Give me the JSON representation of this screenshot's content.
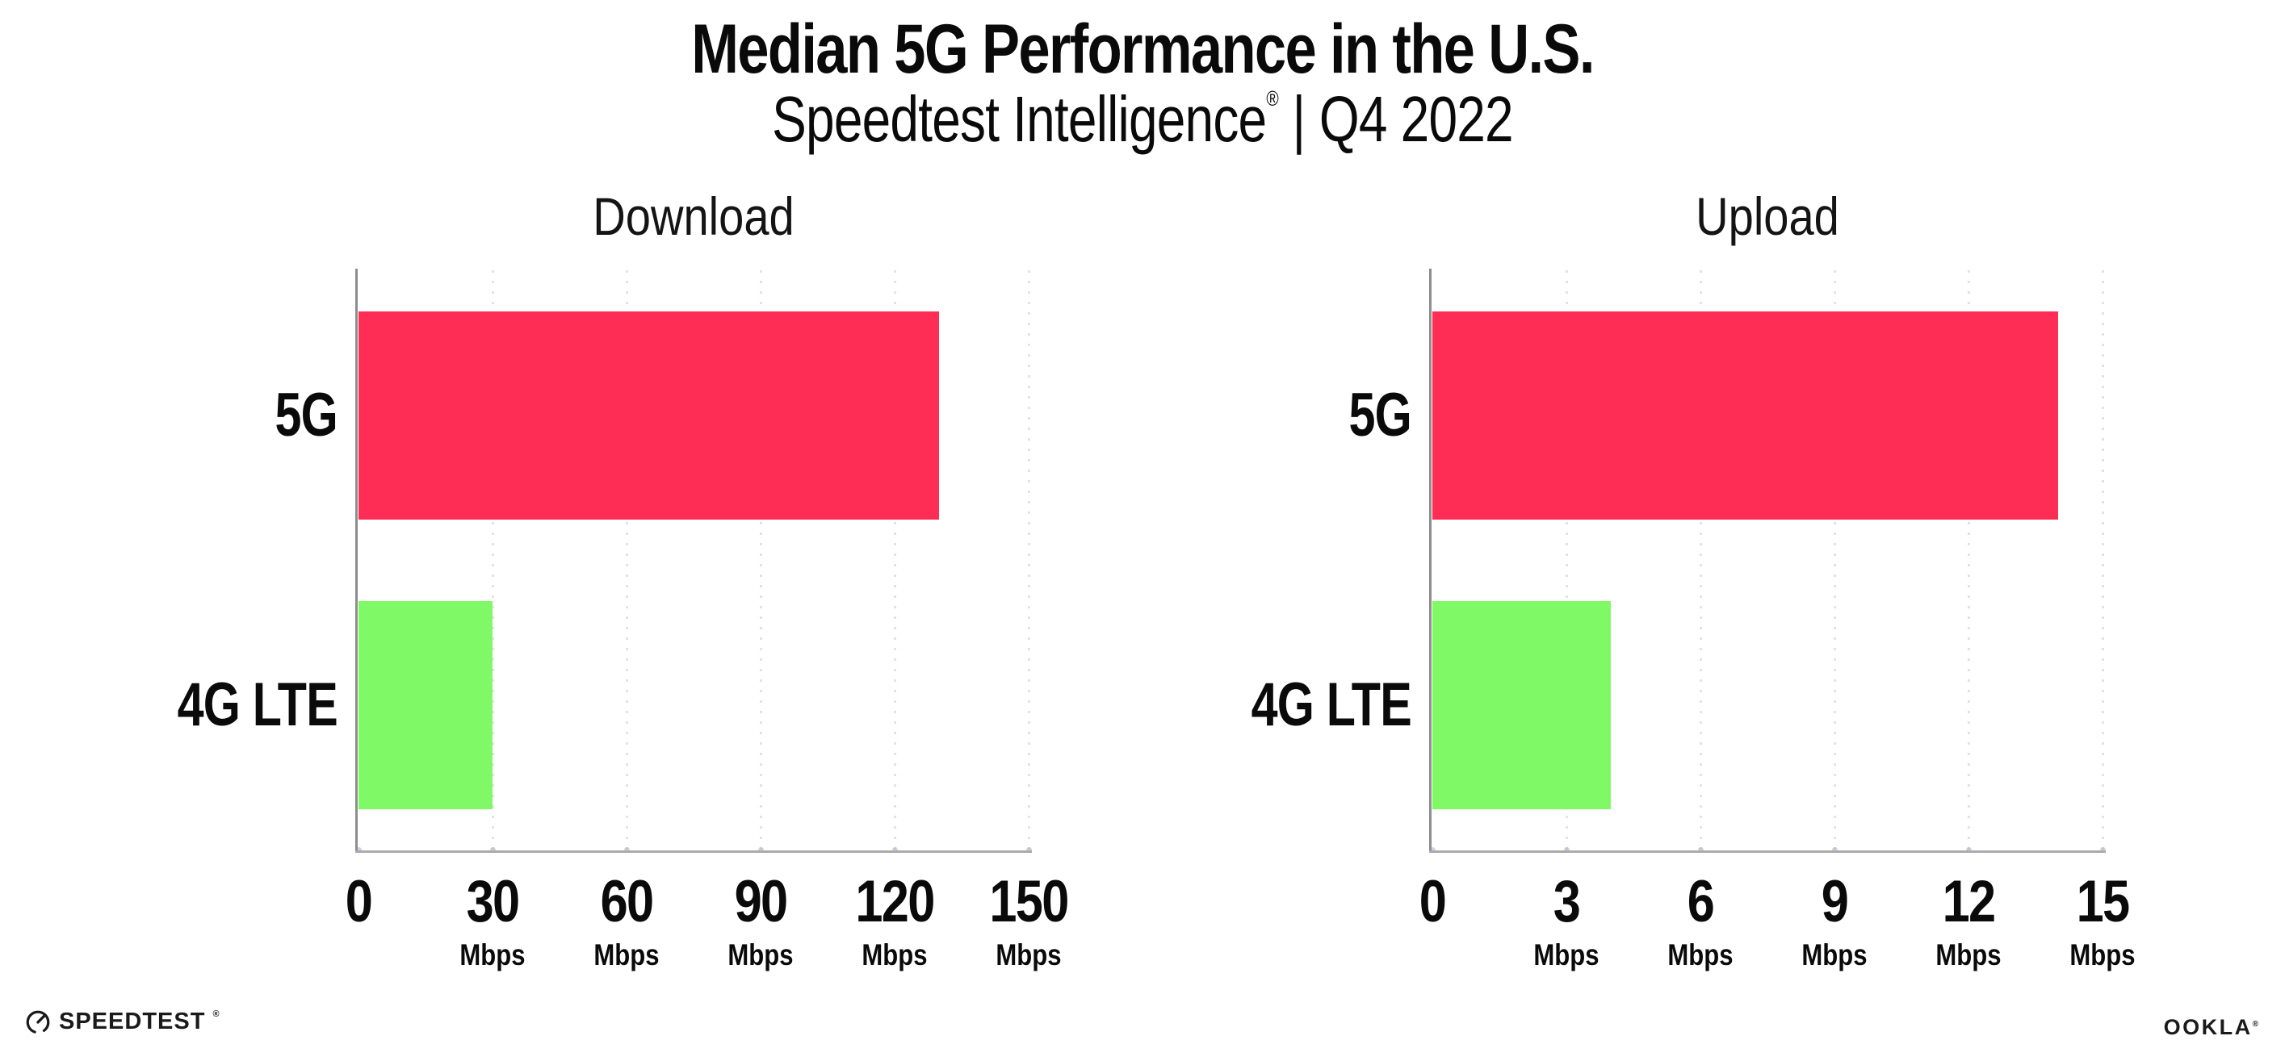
{
  "header": {
    "title": "Median 5G Performance in the U.S.",
    "subtitle_brand": "Speedtest Intelligence",
    "subtitle_reg": "®",
    "subtitle_sep": "|",
    "subtitle_period": "Q4 2022"
  },
  "colors": {
    "bar_5g": "#FD2D55",
    "bar_4g_lte": "#7FFA66",
    "y_axis_line": "#8d8d8d",
    "x_axis_line": "#ababab",
    "gridline_dots": "#e2e2ec",
    "text": "#0a0a0a"
  },
  "chart_data": [
    {
      "type": "bar",
      "orientation": "horizontal",
      "title": "Download",
      "categories": [
        "5G",
        "4G LTE"
      ],
      "values": [
        130,
        30
      ],
      "unit": "Mbps",
      "xlim": [
        0,
        150
      ],
      "xticks": [
        0,
        30,
        60,
        90,
        120,
        150
      ],
      "tick_unit_label": "Mbps",
      "bar_colors": [
        "#FD2D55",
        "#7FFA66"
      ],
      "grid": "vertical-dotted",
      "legend": "none"
    },
    {
      "type": "bar",
      "orientation": "horizontal",
      "title": "Upload",
      "categories": [
        "5G",
        "4G LTE"
      ],
      "values": [
        14,
        4
      ],
      "unit": "Mbps",
      "xlim": [
        0,
        15
      ],
      "xticks": [
        0,
        3,
        6,
        9,
        12,
        15
      ],
      "tick_unit_label": "Mbps",
      "bar_colors": [
        "#FD2D55",
        "#7FFA66"
      ],
      "grid": "vertical-dotted",
      "legend": "none"
    }
  ],
  "footer": {
    "speedtest_label": "SPEEDTEST",
    "speedtest_reg": "®",
    "speedtest_icon": "gauge-icon",
    "ookla_label": "OOKLA",
    "ookla_reg": "®"
  }
}
